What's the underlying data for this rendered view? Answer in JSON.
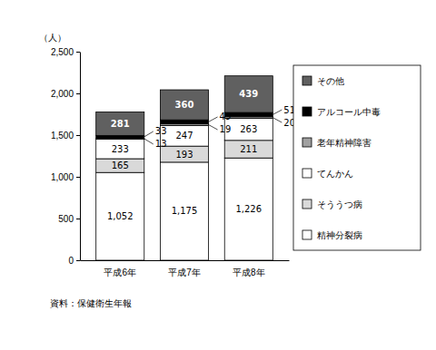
{
  "chart_data": {
    "type": "bar",
    "stacked": true,
    "data_labels": true,
    "legend": "right",
    "ylabel": "（人）",
    "source": "資料：保健衛生年報",
    "categories": [
      "平成6年",
      "平成7年",
      "平成8年"
    ],
    "ylim": [
      0,
      2500
    ],
    "yticks": [
      0,
      500,
      {
        "value": 1000,
        "label": "1,000"
      },
      {
        "value": 1500,
        "label": "1,500"
      },
      {
        "value": 2000,
        "label": "2,000"
      },
      {
        "value": 2500,
        "label": "2,500"
      }
    ],
    "series": [
      {
        "name": "精神分裂病",
        "color": "#ffffff",
        "values": [
          1052,
          1175,
          1226
        ],
        "value_labels": [
          "1,052",
          "1,175",
          "1,226"
        ]
      },
      {
        "name": "そううつ病",
        "color": "#d9d9d9",
        "values": [
          165,
          193,
          211
        ]
      },
      {
        "name": "てんかん",
        "color": "#ffffff",
        "values": [
          233,
          247,
          263
        ]
      },
      {
        "name": "老年精神障害",
        "color": "#a0a0a0",
        "values": [
          13,
          19,
          20
        ]
      },
      {
        "name": "アルコール中毒",
        "color": "#000000",
        "values": [
          33,
          49,
          51
        ]
      },
      {
        "name": "その他",
        "color": "#606060",
        "values": [
          281,
          360,
          439
        ]
      }
    ]
  }
}
